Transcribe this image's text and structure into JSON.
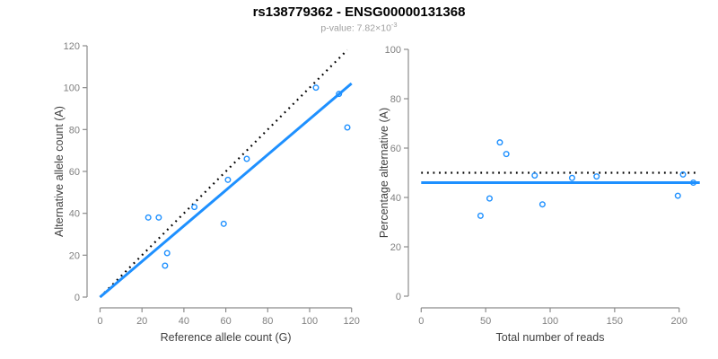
{
  "page": {
    "title": "rs138779362 - ENSG00000131368",
    "subtitle_prefix": "p-value: 7.82×10",
    "subtitle_exponent": "-3"
  },
  "colors": {
    "accent_blue": "#1E90FF",
    "dotted_black": "#000000",
    "axis_line": "#8C8C8C",
    "tick_label": "#808080",
    "axis_title": "#3F3F3F",
    "title_text": "#000000",
    "subtitle_text": "#9E9E9E"
  },
  "chart_data": [
    {
      "type": "scatter",
      "panel": "allele-counts",
      "title": "",
      "xlabel": "Reference allele count (G)",
      "ylabel": "Alternative allele count (A)",
      "xlim": [
        0,
        120
      ],
      "ylim": [
        0,
        120
      ],
      "xticks": [
        0,
        20,
        40,
        60,
        80,
        100,
        120
      ],
      "yticks": [
        0,
        20,
        40,
        60,
        80,
        100,
        120
      ],
      "grid": false,
      "legend": null,
      "points": [
        [
          23,
          38
        ],
        [
          28,
          38
        ],
        [
          31,
          15
        ],
        [
          32,
          21
        ],
        [
          45,
          43
        ],
        [
          59,
          35
        ],
        [
          61,
          56
        ],
        [
          70,
          66
        ],
        [
          103,
          100
        ],
        [
          114,
          97
        ],
        [
          118,
          81
        ]
      ],
      "lines": [
        {
          "name": "identity-line-dotted",
          "style": "dotted",
          "color": "#000000",
          "from": [
            0,
            0
          ],
          "to": [
            118,
            118
          ]
        },
        {
          "name": "regression-line-solid",
          "style": "solid",
          "color": "#1E90FF",
          "from": [
            0,
            0
          ],
          "to": [
            120,
            102
          ]
        }
      ]
    },
    {
      "type": "scatter",
      "panel": "percentage-vs-reads",
      "title": "",
      "xlabel": "Total number of reads",
      "ylabel": "Percentage alternative (A)",
      "xlim": [
        0,
        215
      ],
      "ylim": [
        0,
        100
      ],
      "xticks": [
        0,
        50,
        100,
        150,
        200
      ],
      "yticks": [
        0,
        20,
        40,
        60,
        80,
        100
      ],
      "grid": false,
      "legend": null,
      "points": [
        [
          46,
          32.6
        ],
        [
          53,
          39.6
        ],
        [
          61,
          62.3
        ],
        [
          66,
          57.6
        ],
        [
          88,
          48.9
        ],
        [
          94,
          37.2
        ],
        [
          117,
          47.9
        ],
        [
          136,
          48.5
        ],
        [
          199,
          40.7
        ],
        [
          203,
          49.3
        ],
        [
          211,
          46.0
        ]
      ],
      "lines": [
        {
          "name": "expected-50pct-dotted",
          "style": "dotted",
          "color": "#000000",
          "from": [
            0,
            50
          ],
          "to": [
            215,
            50
          ]
        },
        {
          "name": "observed-mean-solid",
          "style": "solid",
          "color": "#1E90FF",
          "from": [
            0,
            46
          ],
          "to": [
            216,
            46
          ]
        }
      ]
    }
  ]
}
